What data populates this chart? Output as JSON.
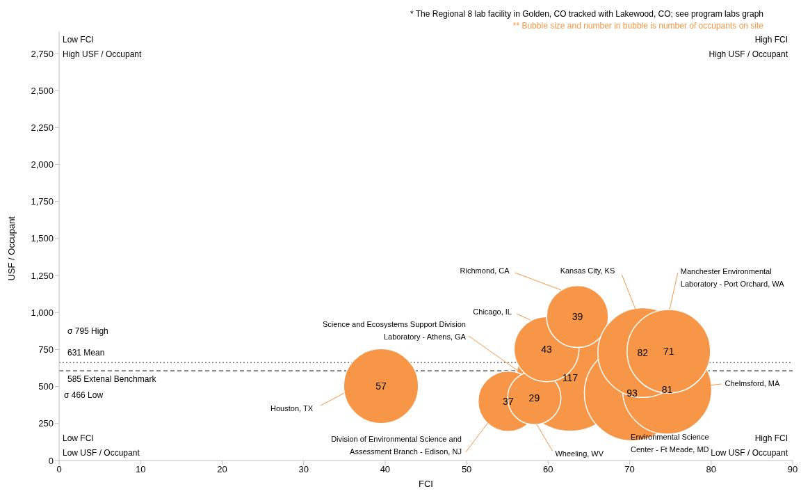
{
  "chart_data": {
    "type": "bubble",
    "xlabel": "FCI",
    "ylabel": "USF / Occupant",
    "xlim": [
      0,
      90
    ],
    "xticks": [
      0,
      10,
      20,
      30,
      40,
      50,
      60,
      70,
      80,
      90
    ],
    "ylim": [
      0,
      2900
    ],
    "yticks": [
      0,
      250,
      500,
      750,
      {
        "value": 1000,
        "label": "1,000"
      },
      {
        "value": 1250,
        "label": "1,250"
      },
      {
        "value": 1500,
        "label": "1,500"
      },
      {
        "value": 1750,
        "label": "1,750"
      },
      {
        "value": 2000,
        "label": "2,000"
      },
      {
        "value": 2250,
        "label": "2,250"
      },
      {
        "value": 2500,
        "label": "2,500"
      },
      {
        "value": 2750,
        "label": "2,750"
      }
    ],
    "series": [
      {
        "color": "#f79646",
        "x": [
          39.5,
          62.7,
          70.3,
          74.6,
          55.1,
          58.3,
          59.8,
          63.6,
          71.6,
          74.8
        ],
        "values": [
          503,
          560,
          456,
          480,
          400,
          423,
          752,
          973,
          729,
          738
        ],
        "sizes": [
          57,
          117,
          93,
          81,
          37,
          29,
          43,
          39,
          82,
          71
        ],
        "value_labels": [
          "57",
          "117",
          "93",
          "81",
          "37",
          "29",
          "43",
          "39",
          "82",
          "71"
        ]
      }
    ],
    "ref_lines": [
      {
        "axis": "y",
        "value": 663,
        "label": "631 Mean",
        "color": "#8c8c8c",
        "line_style": "dotted"
      },
      {
        "axis": "y",
        "value": 606,
        "label": "585 Extenal Benchmark",
        "color": "#8c8c8c",
        "line_style": "dashed"
      }
    ],
    "annotations": [
      "* The Regional 8 lab facility in Golden, CO tracked with Lakewood, CO; see program labs graph",
      "** Bubble size and number in bubble is number of occupants on site",
      "Low FCI\nHigh USF / Occupant",
      "High FCI\nHigh USF / Occupant",
      "Low FCI\nLow USF / Occupant",
      "High FCI\nLow USF / Occupant",
      "σ 795 High",
      "σ 466 Low",
      {
        "text": "Houston, TX",
        "x": 35.0,
        "y": 456
      },
      {
        "text": "Science and Ecosystems Support Division\nLaboratory - Athens, GA",
        "x": 56.3,
        "y": 606
      },
      {
        "text": "Environmental Science\nCenter - Ft Meade, MD",
        "x": 70.4,
        "y": 287
      },
      {
        "text": "Chelmsford, MA",
        "x": 79.9,
        "y": 508
      },
      {
        "text": "Division of Environmental Science and\nAssessment Branch - Edison, NJ",
        "x": 52.6,
        "y": 254
      },
      {
        "text": "Wheeling, WV",
        "x": 58.6,
        "y": 244
      },
      {
        "text": "Chicago, IL",
        "x": 57.8,
        "y": 950
      },
      {
        "text": "Richmond, CA",
        "x": 61.6,
        "y": 1152
      },
      {
        "text": "Kansas City, KS",
        "x": 70.7,
        "y": 1025
      },
      {
        "text": "Manchester Environmental\nLaboratory - Port Orchard, WA",
        "x": 74.9,
        "y": 1020
      }
    ],
    "grid": false
  }
}
